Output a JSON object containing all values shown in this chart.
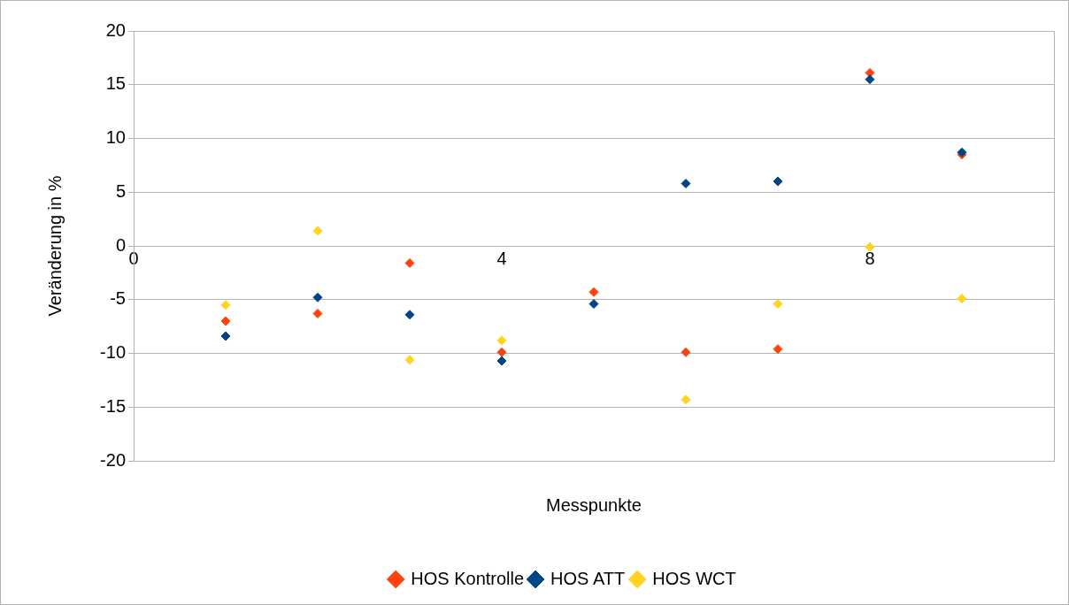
{
  "chart_data": {
    "type": "scatter",
    "xlabel": "Messpunkte",
    "ylabel": "Veränderung in %",
    "x": [
      1,
      2,
      3,
      4,
      5,
      6,
      7,
      8,
      9
    ],
    "series": [
      {
        "name": "HOS Kontrolle",
        "color": "#ff420e",
        "values": [
          -7.0,
          -6.3,
          -1.6,
          -9.9,
          -4.3,
          -9.9,
          -9.6,
          16.1,
          8.5
        ]
      },
      {
        "name": "HOS ATT",
        "color": "#004586",
        "values": [
          -8.4,
          -4.8,
          -6.4,
          -10.7,
          -5.4,
          5.8,
          6.0,
          15.5,
          8.7
        ]
      },
      {
        "name": "HOS WCT",
        "color": "#ffd320",
        "values": [
          -5.5,
          1.4,
          -10.6,
          -8.8,
          null,
          -14.3,
          -5.4,
          -0.1,
          -4.9
        ]
      }
    ],
    "xlim": [
      0,
      10
    ],
    "xticks": [
      0,
      4,
      8
    ],
    "ylim": [
      -20,
      20
    ],
    "yticks": [
      -20,
      -15,
      -10,
      -5,
      0,
      5,
      10,
      15,
      20
    ],
    "grid": "y",
    "legend": "bottom",
    "marker": "diamond"
  }
}
